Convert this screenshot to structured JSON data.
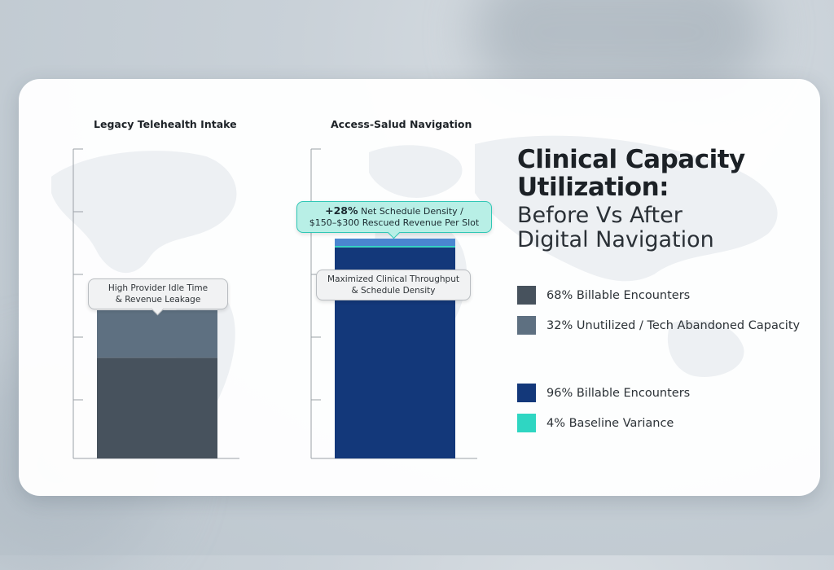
{
  "heading": {
    "line1": "Clinical Capacity",
    "line2": "Utilization:",
    "line3": "Before Vs After",
    "line4": "Digital Navigation"
  },
  "colors": {
    "legacy_billable": "#47525d",
    "legacy_unutilized": "#5e7081",
    "access_billable": "#13387a",
    "access_variance": "#2fd6c2",
    "access_top_band": "#4a86d0"
  },
  "legend": [
    {
      "label": "68% Billable Encounters",
      "color": "#47525d"
    },
    {
      "label": "32% Unutilized / Tech Abandoned Capacity",
      "color": "#5e7081"
    },
    {
      "label": "96% Billable Encounters",
      "color": "#13387a"
    },
    {
      "label": "4% Baseline Variance",
      "color": "#2fd6c2"
    }
  ],
  "callouts": {
    "legacy": {
      "line1": "High Provider Idle Time",
      "line2": "& Revenue Leakage"
    },
    "access_inner": {
      "line1": "Maximized Clinical Throughput",
      "line2": "& Schedule Density"
    },
    "access_top": {
      "pct": "+28%",
      "line1_rest": " Net Schedule Density /",
      "line2": "$150–$300 Rescued Revenue Per Slot"
    }
  },
  "chart_data": [
    {
      "type": "bar",
      "title": "Legacy Telehealth Intake",
      "stacked": true,
      "ylim": [
        0,
        100
      ],
      "series": [
        {
          "name": "68% Billable Encounters",
          "values": [
            68
          ]
        },
        {
          "name": "32% Unutilized / Tech Abandoned Capacity",
          "values": [
            32
          ]
        }
      ]
    },
    {
      "type": "bar",
      "title": "Access-Salud Navigation",
      "stacked": true,
      "ylim": [
        0,
        100
      ],
      "series": [
        {
          "name": "96% Billable Encounters",
          "values": [
            96
          ]
        },
        {
          "name": "4% Baseline Variance",
          "values": [
            4
          ]
        }
      ]
    }
  ]
}
